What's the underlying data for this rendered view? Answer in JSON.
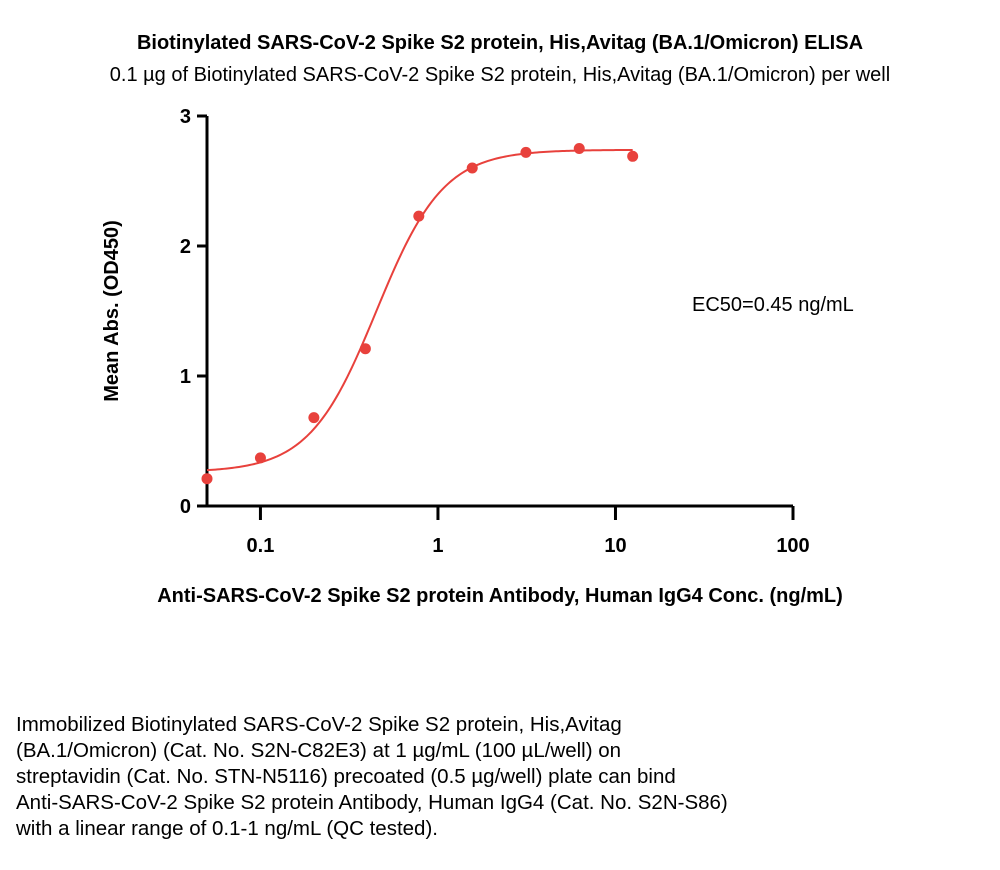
{
  "chart_data": {
    "type": "scatter",
    "title": "Biotinylated SARS-CoV-2 Spike S2 protein, His,Avitag (BA.1/Omicron) ELISA",
    "subtitle": "0.1 µg of Biotinylated SARS-CoV-2 Spike S2 protein, His,Avitag (BA.1/Omicron) per well",
    "xlabel": "Anti-SARS-CoV-2 Spike S2 protein Antibody, Human IgG4 Conc. (ng/mL)",
    "ylabel": "Mean Abs. (OD450)",
    "x_scale": "log",
    "xlim": [
      0.05,
      100
    ],
    "ylim": [
      0,
      3
    ],
    "x_ticks": [
      0.1,
      1,
      10,
      100
    ],
    "x_tick_labels": [
      "0.1",
      "1",
      "10",
      "100"
    ],
    "y_ticks": [
      0,
      1,
      2,
      3
    ],
    "y_tick_labels": [
      "0",
      "1",
      "2",
      "3"
    ],
    "grid": false,
    "annotation": "EC50=0.45 ng/mL",
    "series": [
      {
        "color": "#e8413c",
        "x": [
          0.05,
          0.1,
          0.2,
          0.39,
          0.78,
          1.56,
          3.13,
          6.25,
          12.5
        ],
        "y": [
          0.21,
          0.37,
          0.68,
          1.21,
          2.23,
          2.6,
          2.72,
          2.75,
          2.69
        ]
      }
    ],
    "fit": {
      "type": "4PL",
      "bottom": 0.26,
      "top": 2.74,
      "ec50": 0.45,
      "hill": 2.3
    }
  },
  "caption_lines": [
    "Immobilized Biotinylated SARS-CoV-2 Spike S2 protein, His,Avitag",
    "(BA.1/Omicron) (Cat. No. S2N-C82E3) at 1 µg/mL (100 µL/well) on",
    "streptavidin (Cat. No. STN-N5116) precoated (0.5 µg/well) plate can bind",
    "Anti-SARS-CoV-2 Spike S2 protein Antibody, Human IgG4 (Cat. No. S2N-S86)",
    "with a linear range of 0.1-1 ng/mL (QC tested)."
  ]
}
